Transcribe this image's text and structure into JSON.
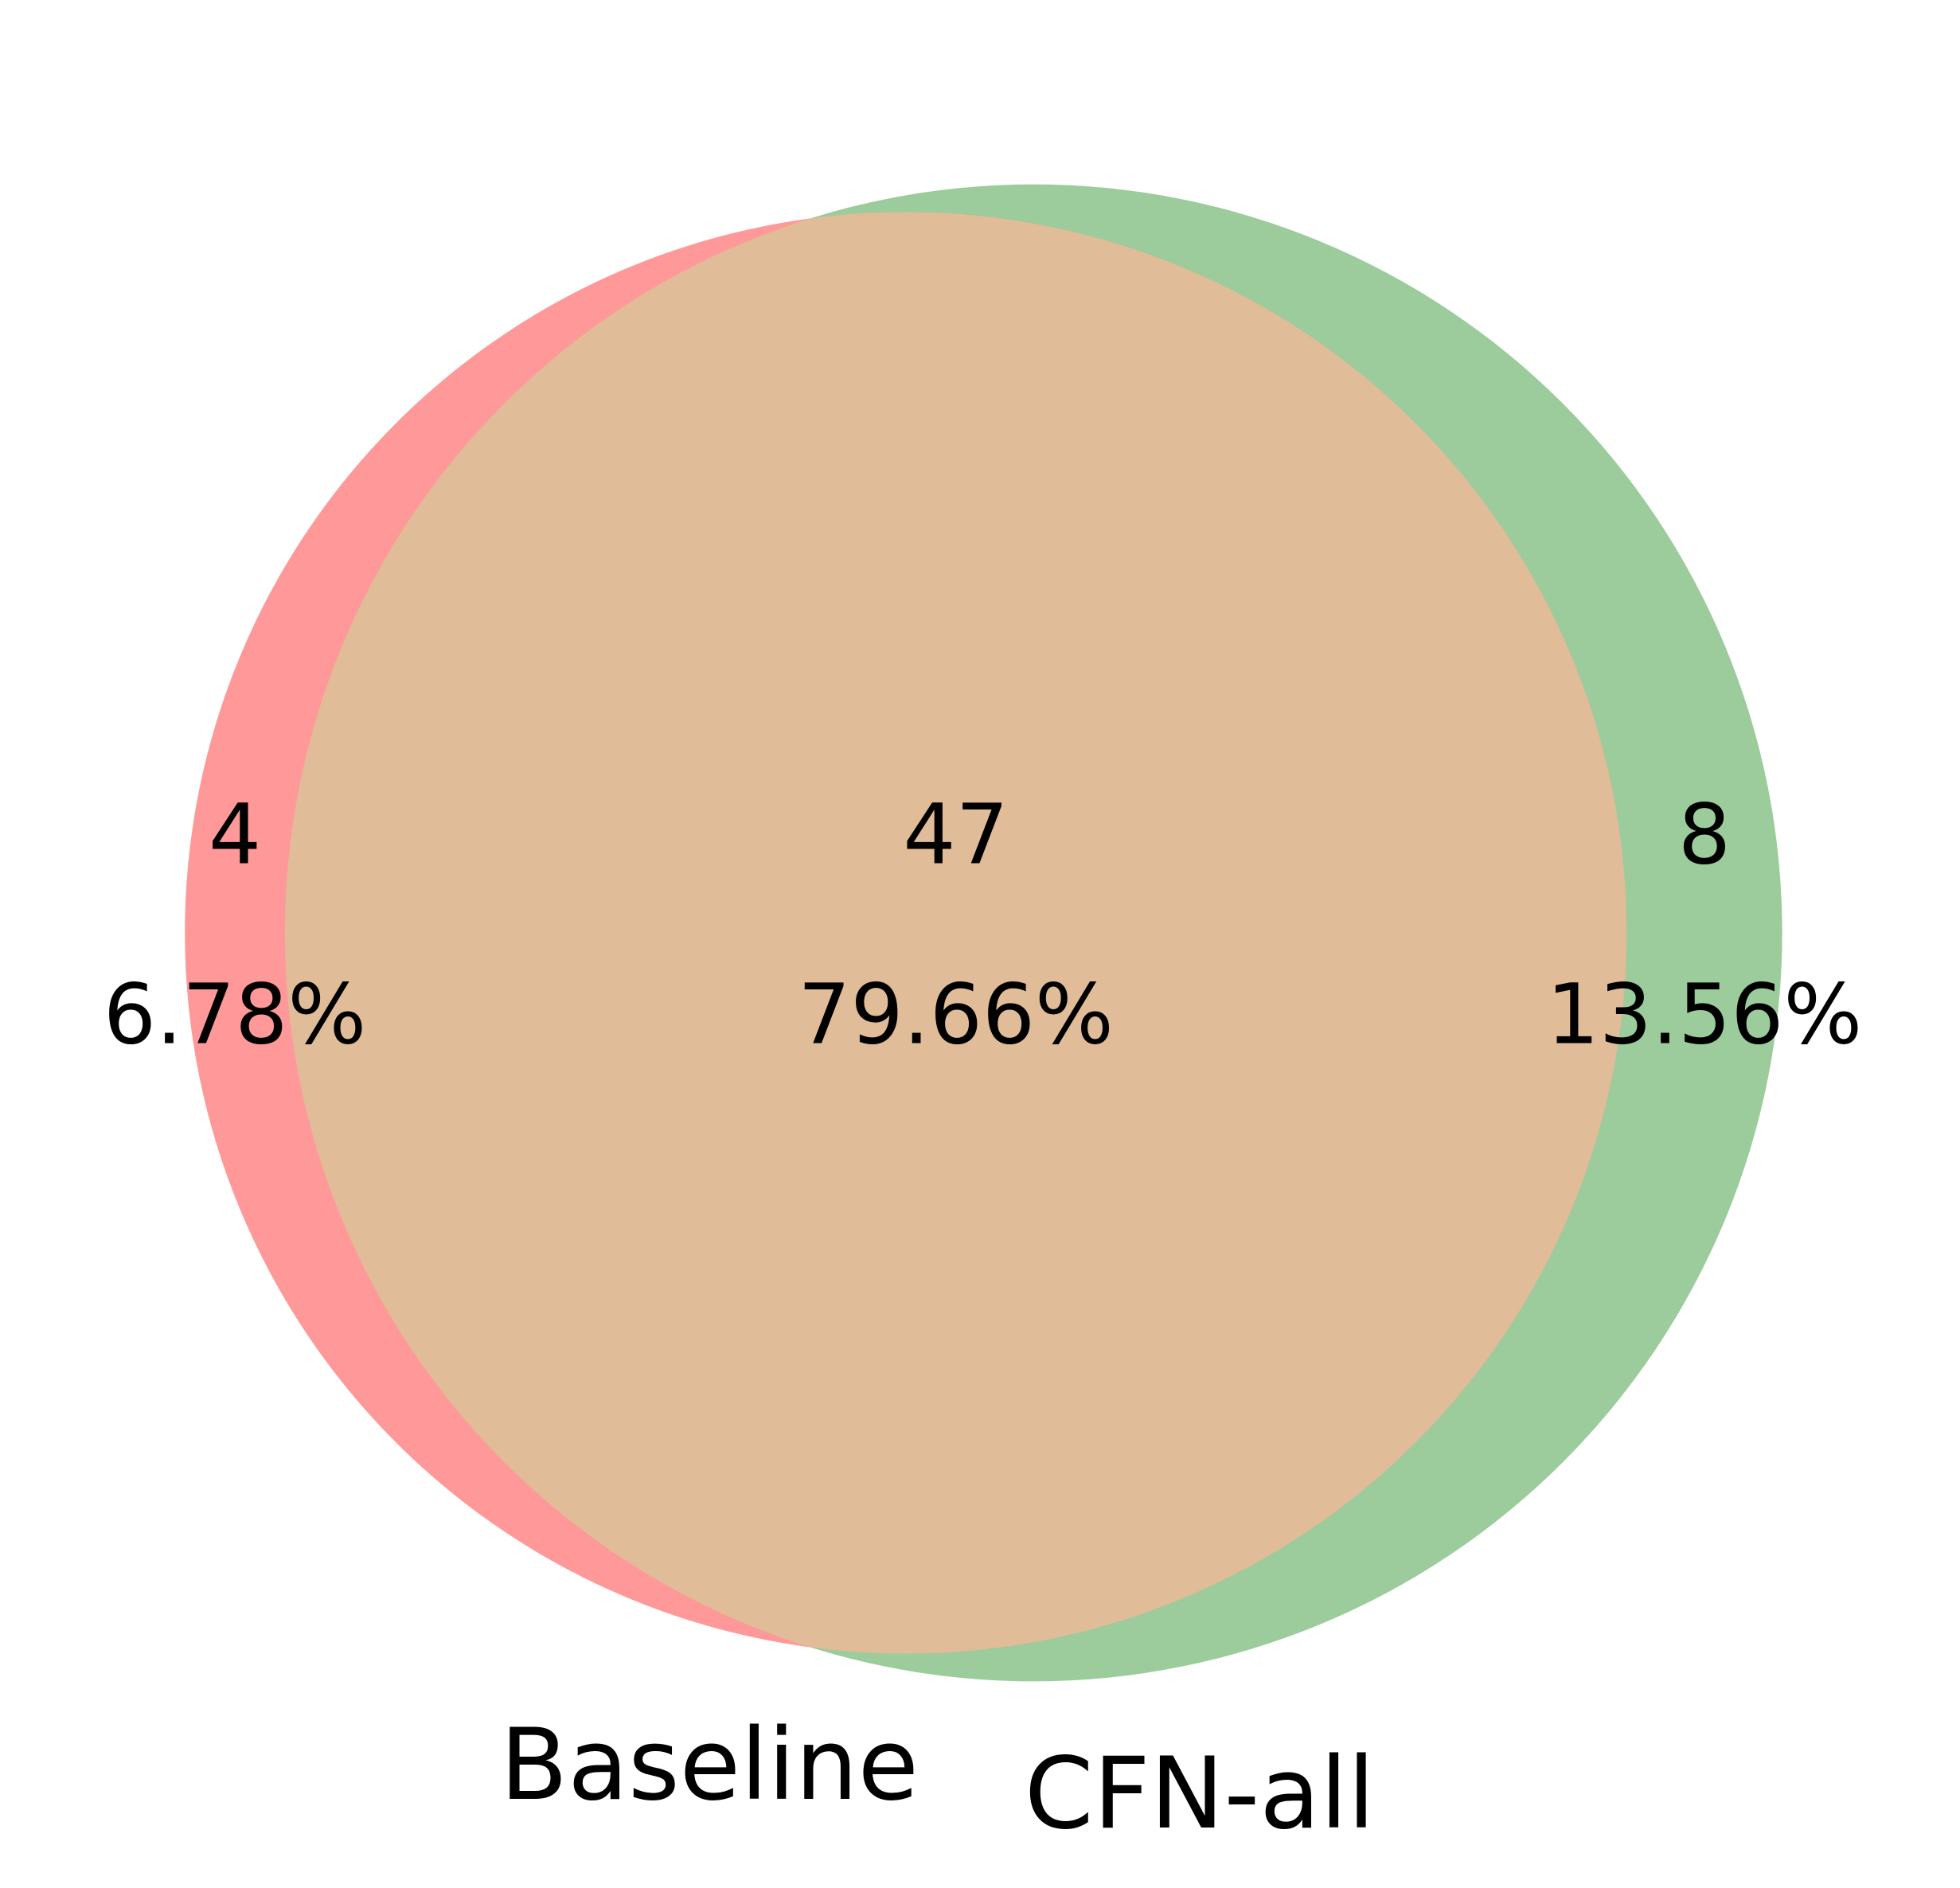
{
  "chart_data": {
    "type": "venn",
    "sets": [
      {
        "name": "Baseline",
        "color": "#ff9999"
      },
      {
        "name": "CFN-all",
        "color": "#9ccc9c"
      }
    ],
    "overlap_color": "#e0bc98",
    "values": [
      4,
      47,
      8
    ],
    "percentages": {
      "values": [
        6.78,
        79.66,
        13.56
      ],
      "value_labels": [
        "6.78%",
        "79.66%",
        "13.56%"
      ]
    }
  }
}
